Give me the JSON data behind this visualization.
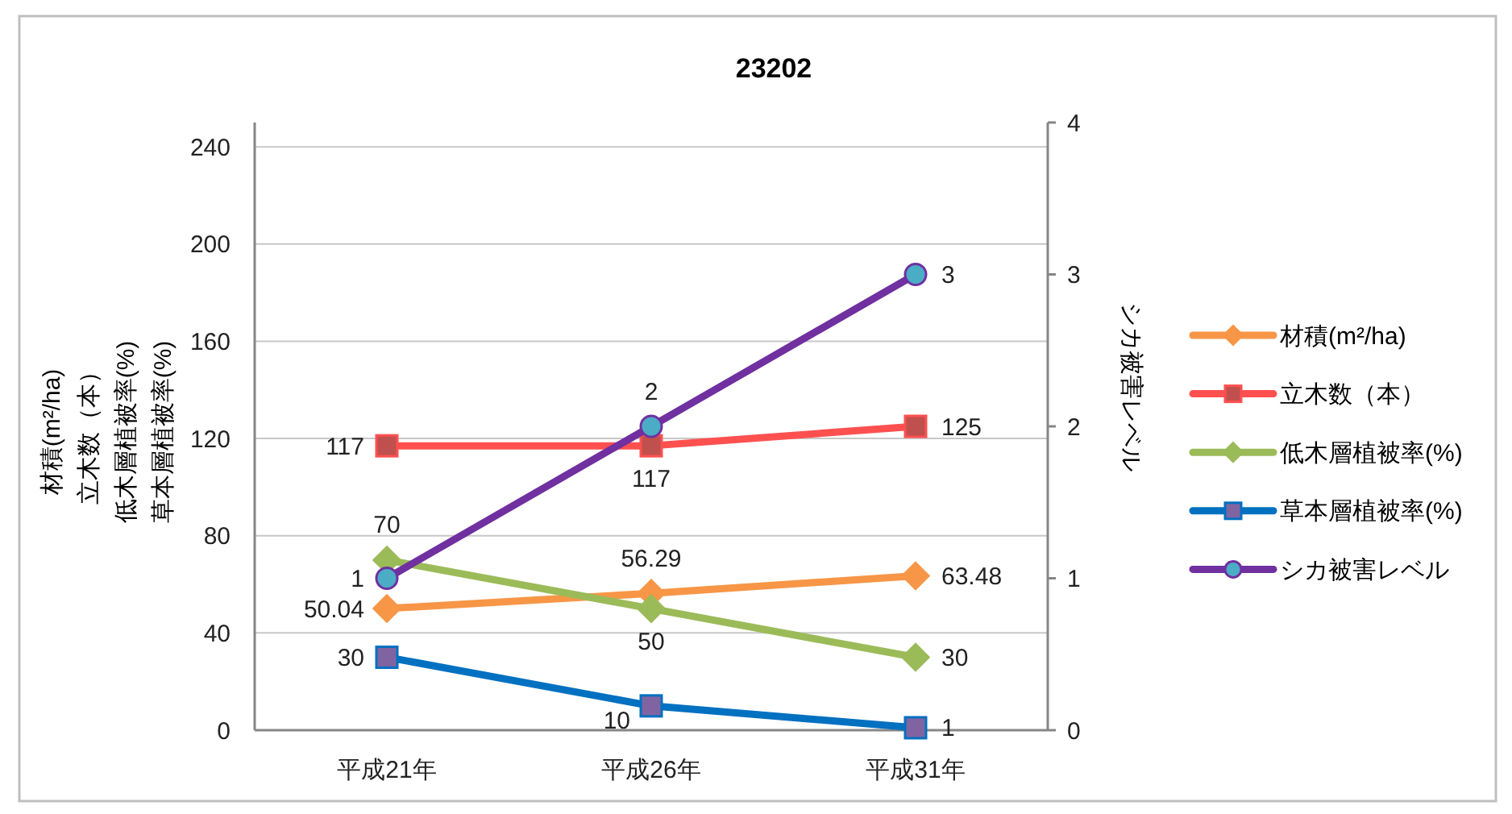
{
  "chart_data": {
    "type": "line",
    "title": "23202",
    "ylabel": "材積(m²/ha)立木数（本）低木層植被率(%)草本層植被率(%)",
    "y2label": "シカ被害レベル",
    "categories": [
      "平成21年",
      "平成26年",
      "平成31年"
    ],
    "ylim": [
      0,
      250
    ],
    "yticks": [
      0,
      40,
      80,
      120,
      160,
      200,
      240
    ],
    "y2lim": [
      0,
      4
    ],
    "y2ticks": [
      0,
      1,
      2,
      3,
      4
    ],
    "grid": "y",
    "legend": "right",
    "data_labels": true,
    "series": [
      {
        "name": "材積(m²/ha)",
        "color": "#f79646",
        "colors": [
          "#f79646",
          "#f79646",
          "#f79646"
        ],
        "marker": "diamond",
        "values": [
          50.04,
          56.29,
          63.48
        ]
      },
      {
        "name": "立木数（本）",
        "color": "#ff5050",
        "colors": [
          "#c0504d",
          "#c0504d",
          "#c0504d"
        ],
        "marker": "square",
        "values": [
          117,
          117,
          125
        ]
      },
      {
        "name": "低木層植被率(%)",
        "color": "#9bbb59",
        "colors": [
          "#9bbb59",
          "#9bbb59",
          "#9bbb59"
        ],
        "marker": "diamond",
        "values": [
          70,
          50,
          30
        ]
      },
      {
        "name": "草本層植被率(%)",
        "color": "#0070c0",
        "colors": [
          "#8064a2",
          "#8064a2",
          "#8064a2"
        ],
        "marker": "square",
        "values": [
          30,
          10,
          1
        ]
      },
      {
        "name": "シカ被害レベル",
        "color": "#7030a0",
        "colors": [
          "#4bacc6",
          "#4bacc6",
          "#4bacc6"
        ],
        "marker": "circle",
        "axis": "y2",
        "values": [
          1,
          2,
          3
        ]
      }
    ]
  }
}
